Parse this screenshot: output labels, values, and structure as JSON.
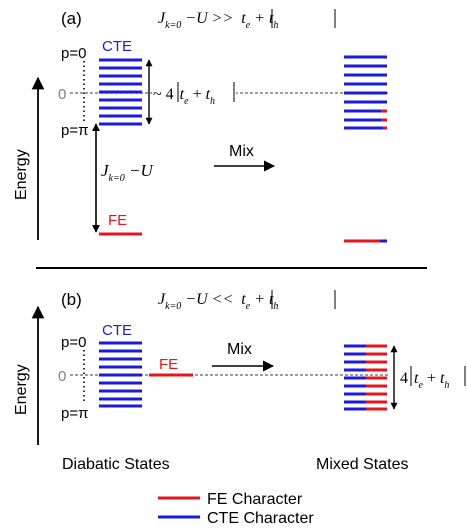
{
  "colors": {
    "fe": "#e8141b",
    "cte": "#1b1be0",
    "ink": "#000000",
    "zero_line": "#7f7f7f"
  },
  "panel_a": {
    "label": "(a)",
    "condition": {
      "lhs": "J",
      "sub": "k=0",
      "rel": " −U >> ",
      "rhs": "t",
      "rhs_sub1": "e",
      "plus": " + ",
      "rhs2": "t",
      "rhs_sub2": "h"
    },
    "p0": "p=0",
    "ppi": "p=π",
    "zero": "0",
    "cte": "CTE",
    "fe": "FE",
    "mix": "Mix",
    "width_label": {
      "prefix": "~ 4",
      "t1": "t",
      "s1": "e",
      "plus": " + ",
      "t2": "t",
      "s2": "h"
    },
    "gap_label": {
      "lhs": "J",
      "sub": "k=0",
      "rest": " −U"
    },
    "energy": "Energy"
  },
  "panel_b": {
    "label": "(b)",
    "condition": {
      "lhs": "J",
      "sub": "k=0",
      "rel": " −U << ",
      "rhs": "t",
      "rhs_sub1": "e",
      "plus": " + ",
      "rhs2": "t",
      "rhs_sub2": "h"
    },
    "p0": "p=0",
    "ppi": "p=π",
    "zero": "0",
    "cte": "CTE",
    "fe": "FE",
    "mix": "Mix",
    "width_label": {
      "prefix": "4",
      "t1": "t",
      "s1": "e",
      "plus": " + ",
      "t2": "t",
      "s2": "h"
    },
    "energy": "Energy",
    "diabatic": "Diabatic States",
    "mixed": "Mixed States"
  },
  "legend": [
    {
      "label": "FE Character",
      "color": "#e8141b"
    },
    {
      "label": "CTE Character",
      "color": "#1b1be0"
    }
  ]
}
